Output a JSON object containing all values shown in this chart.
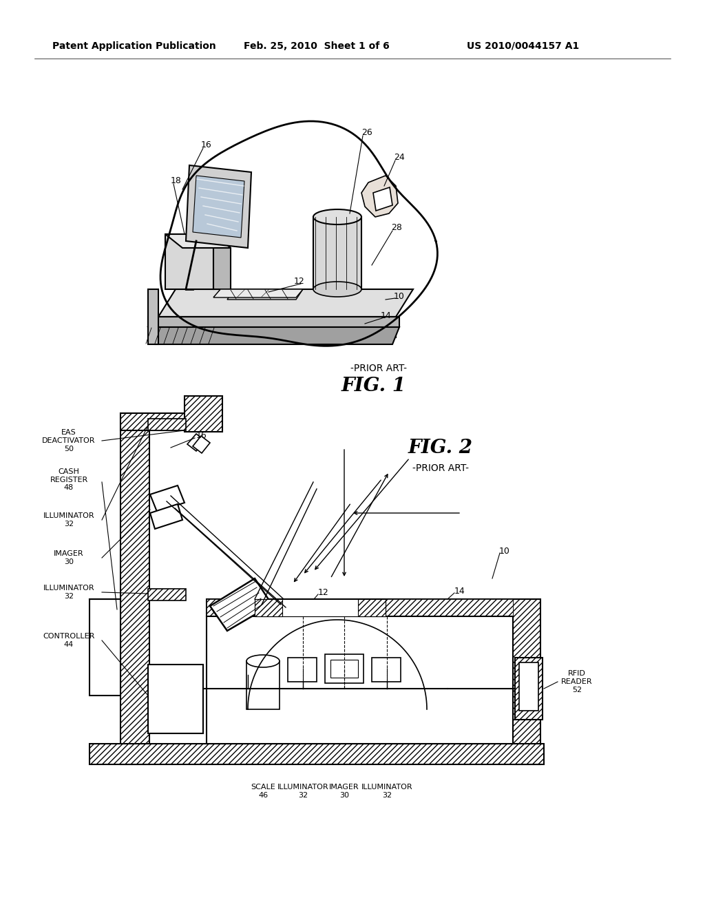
{
  "bg_color": "#ffffff",
  "header_text": "Patent Application Publication",
  "header_date": "Feb. 25, 2010  Sheet 1 of 6",
  "header_patent": "US 2010/0044157 A1",
  "fig1_label": "FIG. 1",
  "fig1_prior": "-PRIOR ART-",
  "fig2_label": "FIG. 2",
  "fig2_prior": "-PRIOR ART-",
  "line_color": "#000000",
  "text_color": "#000000",
  "gray_light": "#cccccc",
  "gray_mid": "#999999",
  "gray_dark": "#666666"
}
